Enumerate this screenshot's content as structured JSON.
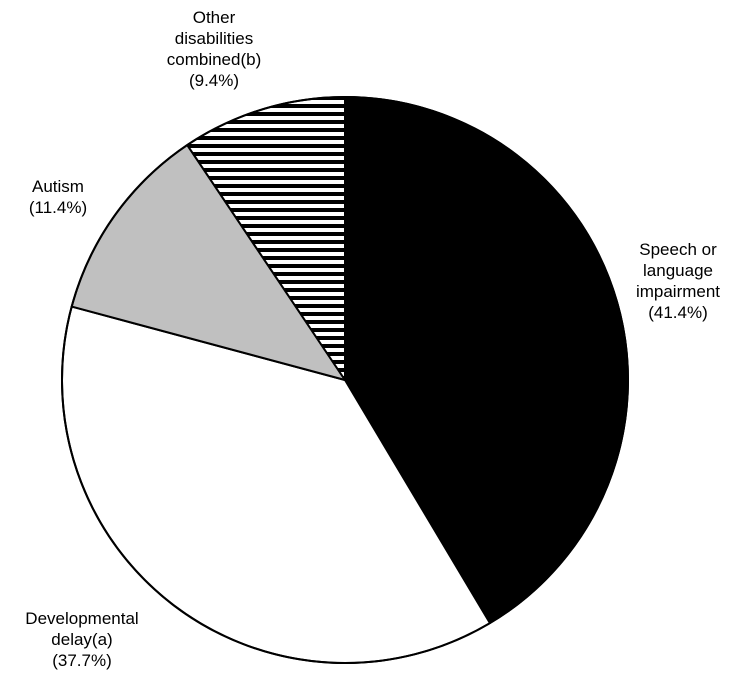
{
  "chart_data": {
    "type": "pie",
    "title": "",
    "start": "12 o'clock, clockwise",
    "slices": [
      {
        "label_lines": [
          "Speech or",
          "language",
          "impairment"
        ],
        "value_text": "(41.4%)",
        "value": 41.4,
        "fill": "solid-black",
        "color": "#000000"
      },
      {
        "label_lines": [
          "Developmental",
          "delay(a)"
        ],
        "value_text": "(37.7%)",
        "value": 37.7,
        "fill": "solid-white",
        "color": "#ffffff"
      },
      {
        "label_lines": [
          "Autism"
        ],
        "value_text": "(11.4%)",
        "value": 11.4,
        "fill": "solid-gray",
        "color": "#c0c0c0"
      },
      {
        "label_lines": [
          "Other",
          "disabilities",
          "combined(b)"
        ],
        "value_text": "(9.4%)",
        "value": 9.4,
        "fill": "horizontal-stripes",
        "color": "#000000"
      }
    ]
  }
}
